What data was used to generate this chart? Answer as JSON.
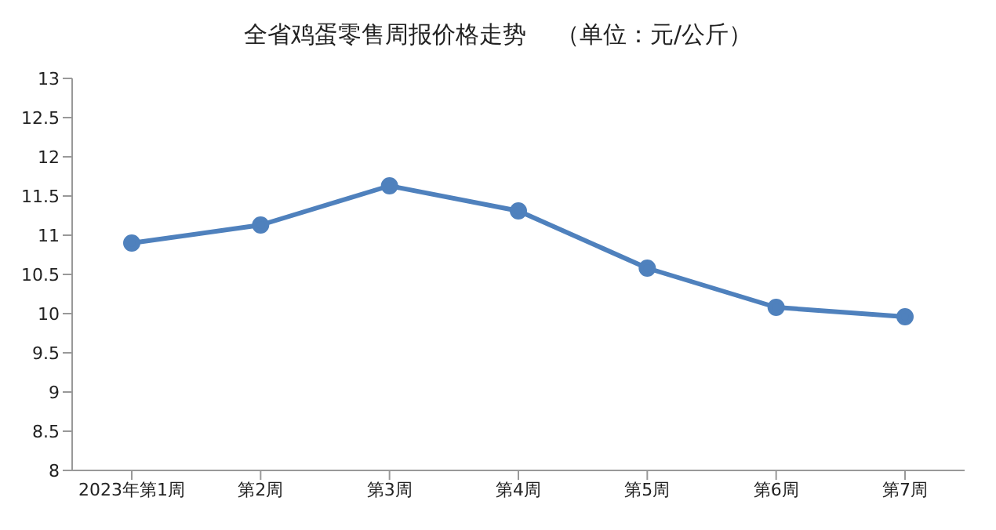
{
  "chart_data": {
    "type": "line",
    "title": "全省鸡蛋零售周报价格走势    （单位：元/公斤）",
    "categories": [
      "2023年第1周",
      "第2周",
      "第3周",
      "第4周",
      "第5周",
      "第6周",
      "第7周"
    ],
    "series": [
      {
        "color": "#4f81bd",
        "values": [
          10.9,
          11.13,
          11.63,
          11.31,
          10.58,
          10.08,
          9.96
        ]
      }
    ],
    "ylim": [
      8,
      13
    ],
    "yticks": [
      8,
      8.5,
      9,
      9.5,
      10,
      10.5,
      11,
      11.5,
      12,
      12.5,
      13
    ],
    "grid": false,
    "legend": false,
    "marker": "circle",
    "line_style": "solid"
  }
}
